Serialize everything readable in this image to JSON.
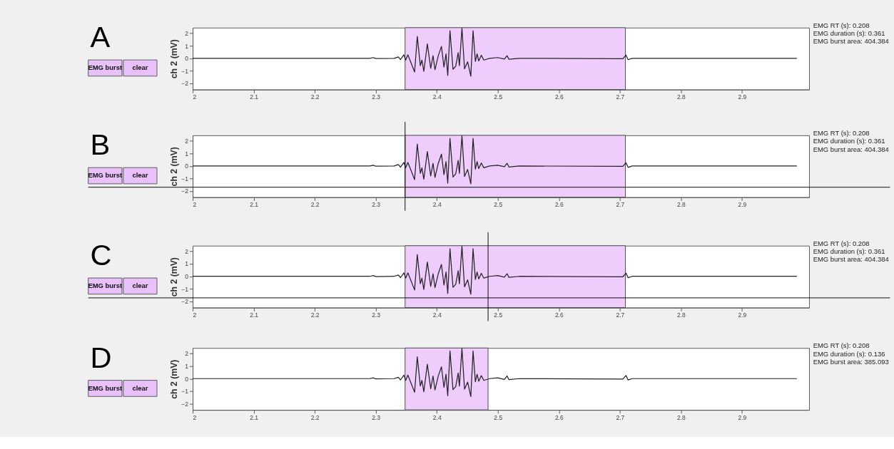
{
  "chart_data": [
    {
      "type": "line",
      "title": "A",
      "ylabel": "ch 2 (mV)",
      "xlim": [
        2,
        3.01
      ],
      "ylim": [
        -2.5,
        2.45
      ],
      "xticks": [
        2,
        2.1,
        2.2,
        2.3,
        2.4,
        2.5,
        2.6,
        2.7,
        2.8,
        2.9
      ],
      "yticks": [
        -2,
        -1,
        0,
        1,
        2
      ],
      "grid": false,
      "marker": "none",
      "line_style": "solid",
      "x": [
        2.0,
        2.29,
        2.296,
        2.3,
        2.33,
        2.337,
        2.3405,
        2.346,
        2.349,
        2.3526,
        2.356,
        2.3636,
        2.368,
        2.373,
        2.3756,
        2.3787,
        2.3845,
        2.39,
        2.3938,
        2.397,
        2.4024,
        2.4076,
        2.4117,
        2.4151,
        2.4179,
        2.4216,
        2.4265,
        2.431,
        2.435,
        2.437,
        2.4412,
        2.4454,
        2.4505,
        2.4557,
        2.4594,
        2.4632,
        2.466,
        2.4687,
        2.4729,
        2.477,
        2.4866,
        2.4997,
        2.5107,
        2.5151,
        2.5182,
        2.535,
        2.7048,
        2.71,
        2.7134,
        2.72,
        2.99
      ],
      "series": [
        {
          "color": "#222222",
          "values": [
            0,
            0,
            0.06,
            -0.02,
            0,
            0.11,
            -0.1,
            0.28,
            -0.14,
            0.28,
            -0.14,
            -1.09,
            1.75,
            -0.59,
            -0.14,
            -1.05,
            1.15,
            -0.8,
            0.21,
            -0.91,
            0.21,
            0.95,
            -0.7,
            0.35,
            -1.37,
            2.21,
            -0.88,
            -0.63,
            0.45,
            -0.59,
            2.41,
            -0.84,
            -0.28,
            -1.43,
            2.21,
            -0.25,
            0.35,
            -0.21,
            0.24,
            -0.14,
            0,
            0.06,
            -0.06,
            0.21,
            -0.08,
            0,
            -0.03,
            0.25,
            -0.11,
            0,
            0
          ]
        }
      ],
      "bands": [
        {
          "axis": "x",
          "from": 2.348,
          "to": 2.709,
          "color": "#eecdfc"
        }
      ],
      "annotations": [
        "EMG burst",
        "clear",
        "EMG RT (s): 0.208",
        "EMG duration (s): 0.361",
        "EMG burst area: 404.384"
      ]
    },
    {
      "type": "line",
      "title": "B",
      "ylabel": "ch 2 (mV)",
      "xlim": [
        2,
        3.01
      ],
      "ylim": [
        -2.5,
        2.45
      ],
      "xticks": [
        2,
        2.1,
        2.2,
        2.3,
        2.4,
        2.5,
        2.6,
        2.7,
        2.8,
        2.9
      ],
      "yticks": [
        -2,
        -1,
        0,
        1,
        2
      ],
      "grid": false,
      "marker": "none",
      "line_style": "solid",
      "x": [
        2.0,
        2.29,
        2.296,
        2.3,
        2.33,
        2.337,
        2.3405,
        2.346,
        2.349,
        2.3526,
        2.356,
        2.3636,
        2.368,
        2.373,
        2.3756,
        2.3787,
        2.3845,
        2.39,
        2.3938,
        2.397,
        2.4024,
        2.4076,
        2.4117,
        2.4151,
        2.4179,
        2.4216,
        2.4265,
        2.431,
        2.435,
        2.437,
        2.4412,
        2.4454,
        2.4505,
        2.4557,
        2.4594,
        2.4632,
        2.466,
        2.4687,
        2.4729,
        2.477,
        2.4866,
        2.4997,
        2.5107,
        2.5151,
        2.5182,
        2.535,
        2.7048,
        2.71,
        2.7134,
        2.72,
        2.99
      ],
      "series": [
        {
          "color": "#222222",
          "values": [
            0,
            0,
            0.06,
            -0.02,
            0,
            0.11,
            -0.1,
            0.28,
            -0.14,
            0.28,
            -0.14,
            -1.09,
            1.75,
            -0.59,
            -0.14,
            -1.05,
            1.15,
            -0.8,
            0.21,
            -0.91,
            0.21,
            0.95,
            -0.7,
            0.35,
            -1.37,
            2.21,
            -0.88,
            -0.63,
            0.45,
            -0.59,
            2.41,
            -0.84,
            -0.28,
            -1.43,
            2.21,
            -0.25,
            0.35,
            -0.21,
            0.24,
            -0.14,
            0,
            0.06,
            -0.06,
            0.21,
            -0.08,
            0,
            -0.03,
            0.25,
            -0.11,
            0,
            0
          ]
        }
      ],
      "bands": [
        {
          "axis": "x",
          "from": 2.348,
          "to": 2.709,
          "color": "#eecdfc"
        }
      ],
      "ref_lines": [
        {
          "axis": "x",
          "value": 2.348,
          "color": "#000000"
        },
        {
          "axis": "y",
          "value": -1.7,
          "color": "#000000"
        }
      ],
      "annotations": [
        "EMG burst",
        "clear",
        "EMG RT (s): 0.208",
        "EMG duration (s): 0.361",
        "EMG burst area: 404.384"
      ]
    },
    {
      "type": "line",
      "title": "C",
      "ylabel": "ch 2 (mV)",
      "xlim": [
        2,
        3.01
      ],
      "ylim": [
        -2.5,
        2.45
      ],
      "xticks": [
        2,
        2.1,
        2.2,
        2.3,
        2.4,
        2.5,
        2.6,
        2.7,
        2.8,
        2.9
      ],
      "yticks": [
        -2,
        -1,
        0,
        1,
        2
      ],
      "grid": false,
      "marker": "none",
      "line_style": "solid",
      "x": [
        2.0,
        2.29,
        2.296,
        2.3,
        2.33,
        2.337,
        2.3405,
        2.346,
        2.349,
        2.3526,
        2.356,
        2.3636,
        2.368,
        2.373,
        2.3756,
        2.3787,
        2.3845,
        2.39,
        2.3938,
        2.397,
        2.4024,
        2.4076,
        2.4117,
        2.4151,
        2.4179,
        2.4216,
        2.4265,
        2.431,
        2.435,
        2.437,
        2.4412,
        2.4454,
        2.4505,
        2.4557,
        2.4594,
        2.4632,
        2.466,
        2.4687,
        2.4729,
        2.477,
        2.4866,
        2.4997,
        2.5107,
        2.5151,
        2.5182,
        2.535,
        2.7048,
        2.71,
        2.7134,
        2.72,
        2.99
      ],
      "series": [
        {
          "color": "#222222",
          "values": [
            0,
            0,
            0.06,
            -0.02,
            0,
            0.11,
            -0.1,
            0.28,
            -0.14,
            0.28,
            -0.14,
            -1.09,
            1.75,
            -0.59,
            -0.14,
            -1.05,
            1.15,
            -0.8,
            0.21,
            -0.91,
            0.21,
            0.95,
            -0.7,
            0.35,
            -1.37,
            2.21,
            -0.88,
            -0.63,
            0.45,
            -0.59,
            2.41,
            -0.84,
            -0.28,
            -1.43,
            2.21,
            -0.25,
            0.35,
            -0.21,
            0.24,
            -0.14,
            0,
            0.06,
            -0.06,
            0.21,
            -0.08,
            0,
            -0.03,
            0.25,
            -0.11,
            0,
            0
          ]
        }
      ],
      "bands": [
        {
          "axis": "x",
          "from": 2.348,
          "to": 2.709,
          "color": "#eecdfc"
        }
      ],
      "ref_lines": [
        {
          "axis": "x",
          "value": 2.484,
          "color": "#000000"
        },
        {
          "axis": "y",
          "value": -1.72,
          "color": "#000000"
        }
      ],
      "annotations": [
        "EMG burst",
        "clear",
        "EMG RT (s): 0.208",
        "EMG duration (s): 0.361",
        "EMG burst area: 404.384"
      ]
    },
    {
      "type": "line",
      "title": "D",
      "ylabel": "ch 2 (mV)",
      "xlim": [
        2,
        3.01
      ],
      "ylim": [
        -2.5,
        2.45
      ],
      "xticks": [
        2,
        2.1,
        2.2,
        2.3,
        2.4,
        2.5,
        2.6,
        2.7,
        2.8,
        2.9
      ],
      "yticks": [
        -2,
        -1,
        0,
        1,
        2
      ],
      "grid": false,
      "marker": "none",
      "line_style": "solid",
      "x": [
        2.0,
        2.29,
        2.296,
        2.3,
        2.33,
        2.337,
        2.3405,
        2.346,
        2.349,
        2.3526,
        2.356,
        2.3636,
        2.368,
        2.373,
        2.3756,
        2.3787,
        2.3845,
        2.39,
        2.3938,
        2.397,
        2.4024,
        2.4076,
        2.4117,
        2.4151,
        2.4179,
        2.4216,
        2.4265,
        2.431,
        2.435,
        2.437,
        2.4412,
        2.4454,
        2.4505,
        2.4557,
        2.4594,
        2.4632,
        2.466,
        2.4687,
        2.4729,
        2.477,
        2.4866,
        2.4997,
        2.5107,
        2.5151,
        2.5182,
        2.535,
        2.7048,
        2.71,
        2.7134,
        2.72,
        2.99
      ],
      "series": [
        {
          "color": "#222222",
          "values": [
            0,
            0,
            0.06,
            -0.02,
            0,
            0.11,
            -0.1,
            0.28,
            -0.14,
            0.28,
            -0.14,
            -1.09,
            1.75,
            -0.59,
            -0.14,
            -1.05,
            1.15,
            -0.8,
            0.21,
            -0.91,
            0.21,
            0.95,
            -0.7,
            0.35,
            -1.37,
            2.21,
            -0.88,
            -0.63,
            0.45,
            -0.59,
            2.41,
            -0.84,
            -0.28,
            -1.43,
            2.21,
            -0.25,
            0.35,
            -0.21,
            0.24,
            -0.14,
            0,
            0.06,
            -0.06,
            0.21,
            -0.08,
            0,
            -0.03,
            0.25,
            -0.11,
            0,
            0
          ]
        }
      ],
      "bands": [
        {
          "axis": "x",
          "from": 2.348,
          "to": 2.484,
          "color": "#eecdfc"
        }
      ],
      "annotations": [
        "EMG burst",
        "clear",
        "EMG RT (s): 0.208",
        "EMG duration (s): 0.136",
        "EMG burst area: 385.093"
      ]
    }
  ]
}
